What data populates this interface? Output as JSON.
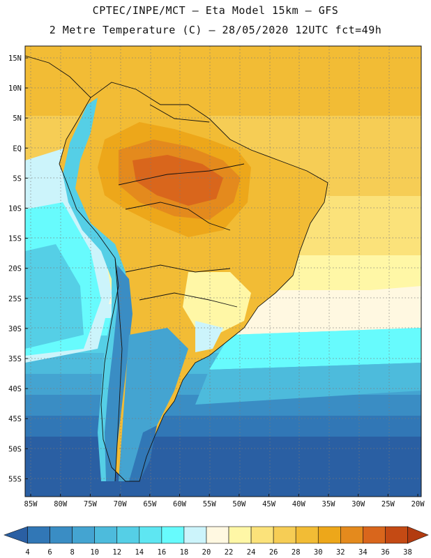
{
  "header": {
    "title_line1": "CPTEC/INPE/MCT –  Eta Model 15km – GFS",
    "title_line2": "2 Metre Temperature (C) – 28/05/2020 12UTC fct=49h"
  },
  "map": {
    "lat_labels": [
      "15N",
      "10N",
      "5N",
      "EQ",
      "5S",
      "10S",
      "15S",
      "20S",
      "25S",
      "30S",
      "35S",
      "40S",
      "45S",
      "50S",
      "55S"
    ],
    "lon_labels": [
      "85W",
      "80W",
      "75W",
      "70W",
      "65W",
      "60W",
      "55W",
      "50W",
      "45W",
      "40W",
      "35W",
      "30W",
      "25W",
      "20W"
    ]
  },
  "colorbar": {
    "labels": [
      "4",
      "6",
      "8",
      "10",
      "12",
      "14",
      "16",
      "18",
      "20",
      "22",
      "24",
      "26",
      "28",
      "30",
      "32",
      "34",
      "36",
      "38"
    ],
    "colors": [
      "#2a5fa3",
      "#3177b6",
      "#3a8dc4",
      "#44a4d1",
      "#4dbbdc",
      "#55cfe6",
      "#5ee6f2",
      "#67fbfd",
      "#ccf4fb",
      "#fff8e1",
      "#fff7a6",
      "#fbe27a",
      "#f6cd55",
      "#f2bc35",
      "#eda71a",
      "#e48a1d",
      "#d9661c",
      "#c44a14",
      "#b23b10"
    ]
  }
}
